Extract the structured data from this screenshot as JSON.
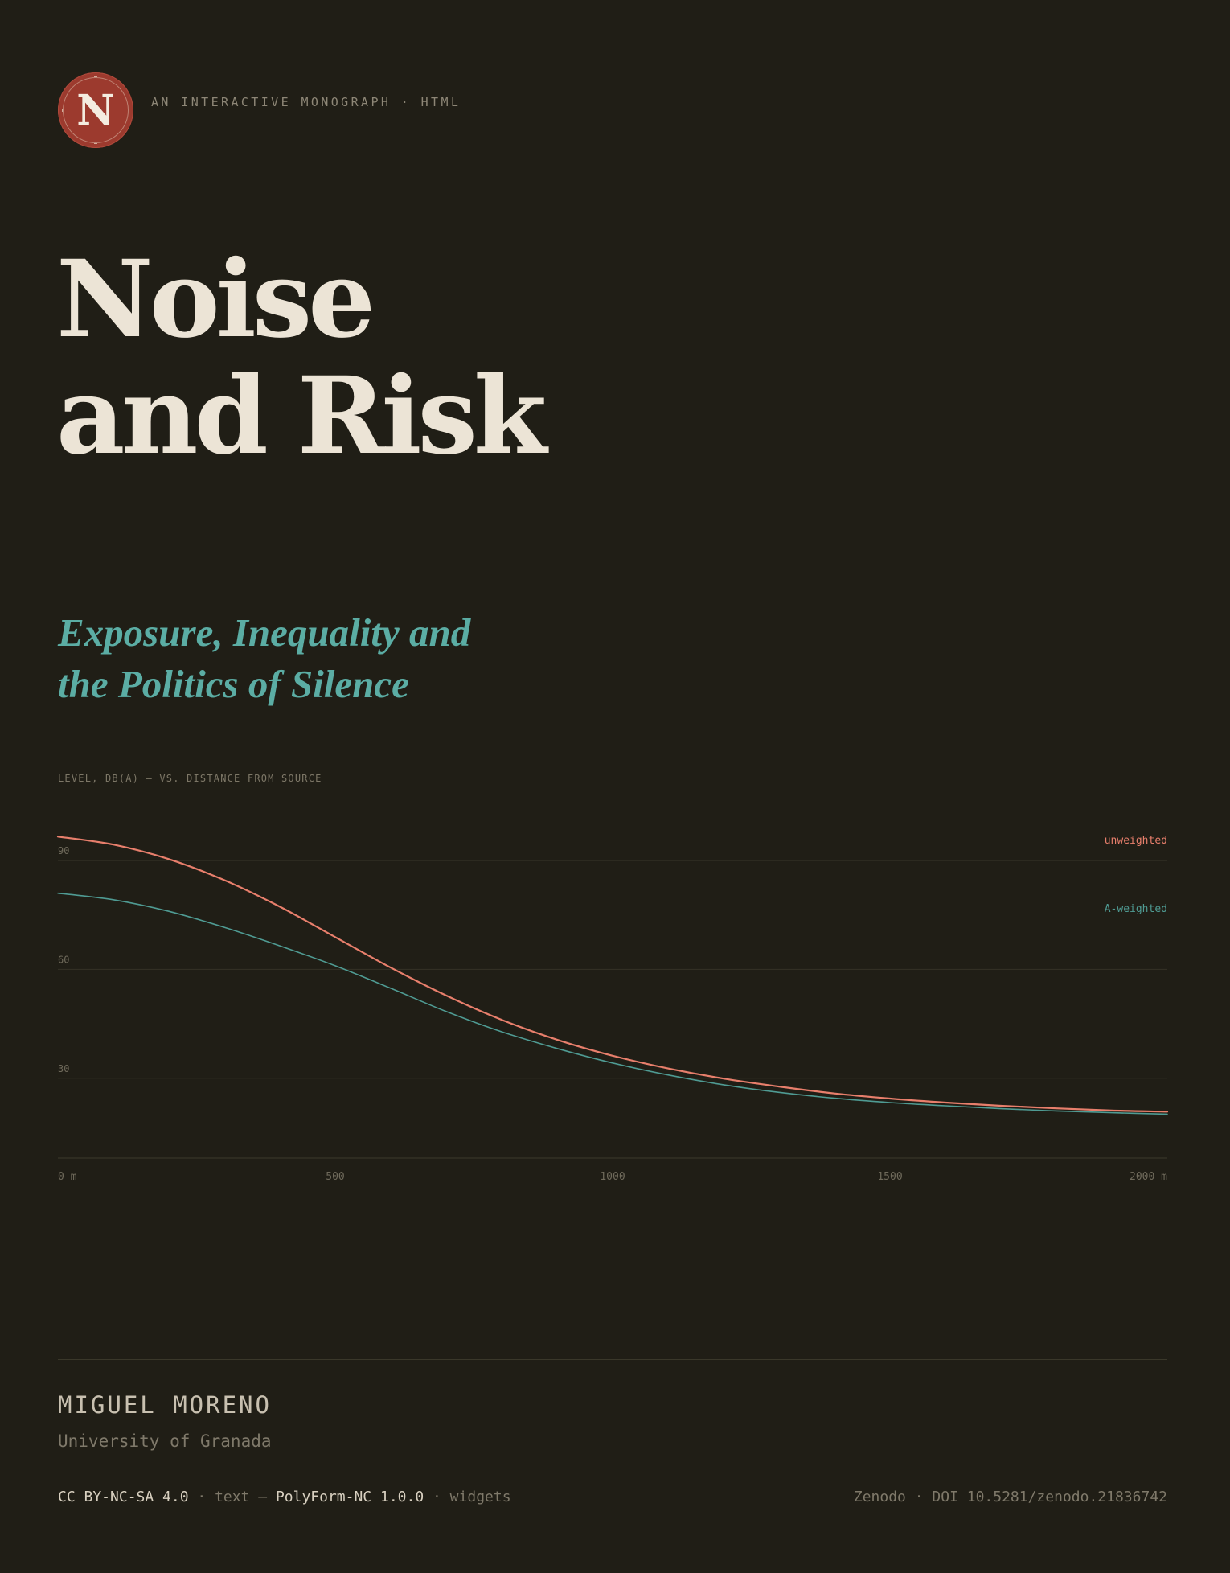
{
  "header": {
    "logo_letter": "N",
    "kicker": "AN INTERACTIVE MONOGRAPH · HTML"
  },
  "title": {
    "line1": "Noise",
    "line2": "and Risk"
  },
  "subtitle": {
    "line1": "Exposure, Inequality and",
    "line2": "the Politics of Silence"
  },
  "chart_caption": "LEVEL, DB(A) — VS. DISTANCE FROM SOURCE",
  "colors": {
    "background": "#201e16",
    "logo": "#9c3a2e",
    "accent_teal": "#5bada4",
    "unweighted": "#e87f6c",
    "a_weighted": "#4f9b93"
  },
  "chart_data": {
    "type": "line",
    "title": "LEVEL, DB(A) — VS. DISTANCE FROM SOURCE",
    "xlabel": "",
    "ylabel": "",
    "xlim": [
      0,
      2000
    ],
    "ylim": [
      8,
      98
    ],
    "x_ticks": [
      {
        "value": 0,
        "label": "0 m"
      },
      {
        "value": 500,
        "label": "500"
      },
      {
        "value": 1000,
        "label": "1000"
      },
      {
        "value": 1500,
        "label": "1500"
      },
      {
        "value": 2000,
        "label": "2000 m"
      }
    ],
    "y_ticks": [
      {
        "value": 90,
        "label": "90"
      },
      {
        "value": 60,
        "label": "60"
      },
      {
        "value": 30,
        "label": "30"
      }
    ],
    "grid": true,
    "series": [
      {
        "name": "unweighted",
        "color": "#e87f6c",
        "x": [
          0,
          100,
          200,
          300,
          400,
          500,
          600,
          700,
          800,
          900,
          1000,
          1100,
          1200,
          1300,
          1400,
          1500,
          1600,
          1700,
          1800,
          1900,
          2000
        ],
        "y": [
          96.6,
          94.4,
          90.4,
          84.6,
          77.3,
          68.9,
          60.5,
          52.8,
          46.1,
          40.6,
          36.2,
          32.7,
          29.9,
          27.7,
          25.8,
          24.4,
          23.3,
          22.4,
          21.7,
          21.1,
          20.8
        ]
      },
      {
        "name": "A-weighted",
        "color": "#4f9b93",
        "x": [
          0,
          100,
          200,
          300,
          400,
          500,
          600,
          700,
          800,
          900,
          1000,
          1100,
          1200,
          1300,
          1400,
          1500,
          1600,
          1700,
          1800,
          1900,
          2000
        ],
        "y": [
          81.0,
          79.2,
          76.0,
          71.6,
          66.5,
          61.0,
          54.8,
          48.4,
          42.8,
          38.2,
          34.2,
          30.9,
          28.2,
          26.1,
          24.5,
          23.3,
          22.4,
          21.6,
          21.0,
          20.5,
          20.1
        ]
      }
    ]
  },
  "footer": {
    "author": "MIGUEL MORENO",
    "affiliation": "University of Granada",
    "license_text": "CC BY-NC-SA 4.0",
    "license_text_sep": " · text — ",
    "license_widgets": "PolyForm-NC 1.0.0",
    "license_widgets_sep": " · widgets",
    "doi": "Zenodo · DOI 10.5281/zenodo.21836742"
  }
}
